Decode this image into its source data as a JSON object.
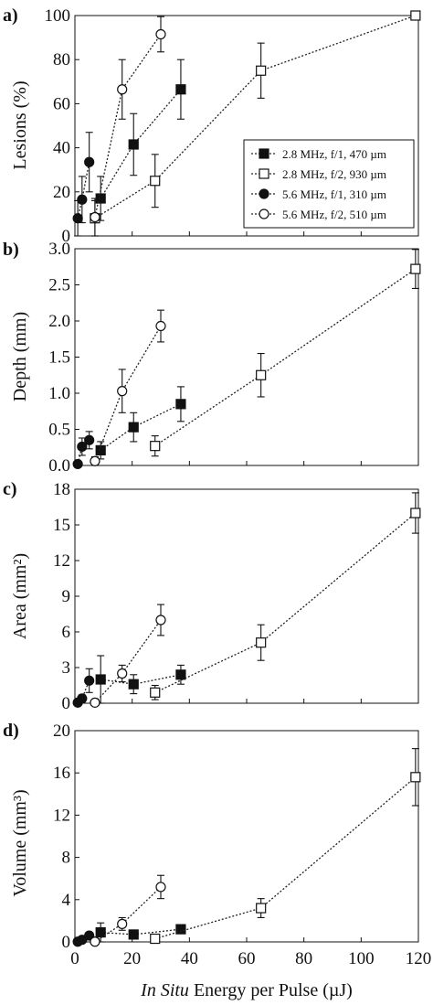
{
  "chart_data": {
    "type": "scatter",
    "xlabel": {
      "italic": "In Situ",
      "rest": " Energy per Pulse (µJ)"
    },
    "xlim": [
      0,
      120
    ],
    "xticks": [
      0,
      20,
      40,
      60,
      80,
      100,
      120
    ],
    "legend": {
      "placement": "bottom-right of panel a",
      "entries": [
        {
          "series": 0,
          "label": "2.8 MHz, f/1, 470 µm"
        },
        {
          "series": 1,
          "label": "2.8 MHz, f/2, 930 µm"
        },
        {
          "series": 2,
          "label": "5.6 MHz, f/1, 310 µm"
        },
        {
          "series": 3,
          "label": "5.6 MHz, f/2, 510 µm"
        }
      ]
    },
    "series_styles": [
      {
        "marker": "square",
        "fill": "filled",
        "line": "dotted"
      },
      {
        "marker": "square",
        "fill": "open",
        "line": "dotted"
      },
      {
        "marker": "circle",
        "fill": "filled",
        "line": "dotted"
      },
      {
        "marker": "circle",
        "fill": "open",
        "line": "dotted"
      }
    ],
    "panels": [
      {
        "letter": "a)",
        "ylabel": "Lesions (%)",
        "ylim": [
          0,
          100
        ],
        "yticks": [
          0,
          20,
          40,
          60,
          80,
          100
        ],
        "series": [
          {
            "x": [
              9,
              20.5,
              37
            ],
            "y": [
              17,
              41.5,
              66.5
            ],
            "err": [
              10,
              14,
              13.5
            ]
          },
          {
            "x": [
              7,
              28,
              65,
              119
            ],
            "y": [
              8,
              25,
              75,
              100
            ],
            "err": [
              8,
              12,
              12.5,
              0
            ]
          },
          {
            "x": [
              1,
              2.5,
              5
            ],
            "y": [
              8,
              16.5,
              33.5
            ],
            "err": [
              8,
              10.5,
              13.5
            ]
          },
          {
            "x": [
              7,
              16.5,
              30
            ],
            "y": [
              8.5,
              66.5,
              91.5
            ],
            "err": [
              8.5,
              13.5,
              8
            ]
          }
        ]
      },
      {
        "letter": "b)",
        "ylabel": "Depth (mm)",
        "ylim": [
          0,
          3
        ],
        "yticks": [
          "0.0",
          "0.5",
          "1.0",
          "1.5",
          "2.0",
          "2.5",
          "3.0"
        ],
        "series": [
          {
            "x": [
              9,
              20.5,
              37
            ],
            "y": [
              0.21,
              0.53,
              0.85
            ],
            "err": [
              0.12,
              0.2,
              0.24
            ]
          },
          {
            "x": [
              28,
              65,
              119
            ],
            "y": [
              0.27,
              1.25,
              2.72
            ],
            "err": [
              0.14,
              0.3,
              0.27
            ]
          },
          {
            "x": [
              1,
              2.5,
              5
            ],
            "y": [
              0.02,
              0.26,
              0.35
            ],
            "err": [
              0.0,
              0.12,
              0.12
            ]
          },
          {
            "x": [
              7,
              16.5,
              30
            ],
            "y": [
              0.06,
              1.03,
              1.93
            ],
            "err": [
              0.06,
              0.3,
              0.22
            ]
          }
        ]
      },
      {
        "letter": "c)",
        "ylabel": "Area (mm²)",
        "ylim": [
          0,
          18
        ],
        "yticks": [
          0,
          3,
          6,
          9,
          12,
          15,
          18
        ],
        "series": [
          {
            "x": [
              9,
              20.5,
              37
            ],
            "y": [
              2.0,
              1.6,
              2.4
            ],
            "err": [
              2.0,
              0.8,
              0.8
            ]
          },
          {
            "x": [
              28,
              65,
              119
            ],
            "y": [
              0.9,
              5.1,
              16.0
            ],
            "err": [
              0.6,
              1.5,
              1.7
            ]
          },
          {
            "x": [
              1,
              2.5,
              5
            ],
            "y": [
              0.05,
              0.4,
              1.9
            ],
            "err": [
              0.0,
              0.3,
              1.0
            ]
          },
          {
            "x": [
              7,
              16.5,
              30
            ],
            "y": [
              0.05,
              2.5,
              7.0
            ],
            "err": [
              0.05,
              0.7,
              1.3
            ]
          }
        ]
      },
      {
        "letter": "d)",
        "ylabel": "Volume (mm³)",
        "ylim": [
          0,
          20
        ],
        "yticks": [
          0,
          4,
          8,
          12,
          16,
          20
        ],
        "series": [
          {
            "x": [
              9,
              20.5,
              37
            ],
            "y": [
              0.9,
              0.7,
              1.2
            ],
            "err": [
              0.9,
              0.3,
              0.3
            ]
          },
          {
            "x": [
              28,
              65,
              119
            ],
            "y": [
              0.3,
              3.2,
              15.6
            ],
            "err": [
              0.4,
              0.9,
              2.7
            ]
          },
          {
            "x": [
              1,
              2.5,
              5
            ],
            "y": [
              0.02,
              0.2,
              0.6
            ],
            "err": [
              0.0,
              0.15,
              0.3
            ]
          },
          {
            "x": [
              7,
              16.5,
              30
            ],
            "y": [
              0.02,
              1.7,
              5.2
            ],
            "err": [
              0.02,
              0.6,
              1.1
            ]
          }
        ]
      }
    ]
  }
}
